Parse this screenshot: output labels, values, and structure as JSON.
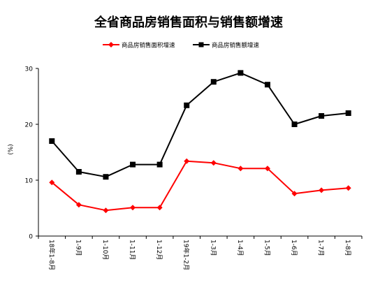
{
  "chart_data": {
    "type": "line",
    "title": "全省商品房销售面积与销售额增速",
    "ylabel": "(%)",
    "xlabel": "",
    "ylim": [
      0,
      30
    ],
    "yticks": [
      0,
      10,
      20,
      30
    ],
    "grid": false,
    "legend_position": "top-center",
    "categories": [
      "18年1-8月",
      "1-9月",
      "1-10月",
      "1-11月",
      "1-12月",
      "19年1-2月",
      "1-3月",
      "1-4月",
      "1-5月",
      "1-6月",
      "1-7月",
      "1-8月"
    ],
    "series": [
      {
        "name": "商品房销售面积增速",
        "color": "#ff0000",
        "marker": "diamond",
        "values": [
          9.6,
          5.6,
          4.6,
          5.1,
          5.1,
          13.4,
          13.1,
          12.1,
          12.1,
          7.6,
          8.2,
          8.6
        ]
      },
      {
        "name": "商品房销售额增速",
        "color": "#000000",
        "marker": "square",
        "values": [
          17.0,
          11.5,
          10.6,
          12.8,
          12.8,
          23.4,
          27.6,
          29.2,
          27.1,
          20.0,
          21.5,
          22.0
        ]
      }
    ]
  }
}
